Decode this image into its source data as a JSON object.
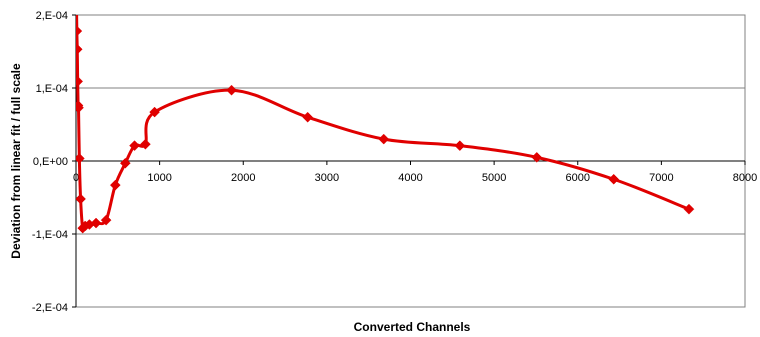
{
  "chart_data": {
    "type": "scatter",
    "title": "",
    "xlabel": "Converted Channels",
    "ylabel": "Deviation from linear fit / full scale",
    "xlim": [
      0,
      8000
    ],
    "ylim": [
      -0.0002,
      0.0002
    ],
    "x_ticks": [
      0,
      1000,
      2000,
      3000,
      4000,
      5000,
      6000,
      7000,
      8000
    ],
    "x_tick_labels": [
      "0",
      "1000",
      "2000",
      "3000",
      "4000",
      "5000",
      "6000",
      "7000",
      "8000"
    ],
    "y_ticks": [
      0.0002,
      0.0001,
      0.0,
      -0.0001,
      -0.0002
    ],
    "y_tick_labels": [
      "2,E-04",
      "1,E-04",
      "0,E+00",
      "-1,E-04",
      "-2,E-04"
    ],
    "grid": "horizontal",
    "line_style": "smooth",
    "series": [
      {
        "color": "#e00000",
        "marker": "diamond",
        "x": [
          3,
          10,
          15,
          20,
          25,
          30,
          40,
          55,
          80,
          110,
          160,
          240,
          360,
          470,
          590,
          700,
          830,
          940,
          1860,
          2770,
          3680,
          4590,
          5510,
          6430,
          7330
        ],
        "y": [
          0.000235,
          0.000178,
          0.000153,
          0.000109,
          7.6e-05,
          7.3e-05,
          3.5e-06,
          -5.2e-05,
          -9.2e-05,
          -8.9e-05,
          -8.7e-05,
          -8.5e-05,
          -8.1e-05,
          -3.3e-05,
          -3e-06,
          2.1e-05,
          2.3e-05,
          6.7e-05,
          9.7e-05,
          6e-05,
          3e-05,
          2.1e-05,
          5e-06,
          -2.5e-05,
          -6.6e-05
        ]
      }
    ]
  }
}
